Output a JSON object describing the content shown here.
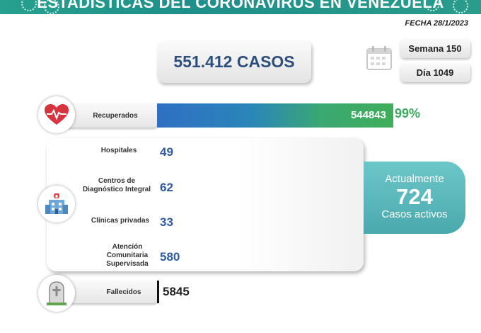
{
  "header": {
    "title": "ESTADÍSTICAS DEL CORONAVIRUS EN VENEZUELA"
  },
  "date": "FECHA 28/1/2023",
  "total_cases": "551.412 CASOS",
  "week": "Semana 150",
  "day": "Día 1049",
  "recovered": {
    "label": "Recuperados",
    "value": "544843",
    "percent": "99%"
  },
  "facilities": [
    {
      "label": "Hospitales",
      "value": "49"
    },
    {
      "label": "Centros de Diagnóstico Integral",
      "value": "62"
    },
    {
      "label": "Clínicas privadas",
      "value": "33"
    },
    {
      "label": "Atención Comunitaria Supervisada",
      "value": "580"
    }
  ],
  "active": {
    "top": "Actualmente",
    "number": "724",
    "bottom": "Casos activos"
  },
  "deaths": {
    "label": "Fallecidos",
    "value": "5845"
  },
  "icons": [
    "heart-monitor-icon",
    "hospital-icon",
    "gravestone-icon",
    "calendar-icon",
    "virus-icon"
  ],
  "colors": {
    "header": "#1e8f8a",
    "recovered_start": "#2f6fc4",
    "recovered_end": "#3fae5a",
    "active": "#5ab8bc",
    "value_blue": "#2d5aa0"
  }
}
